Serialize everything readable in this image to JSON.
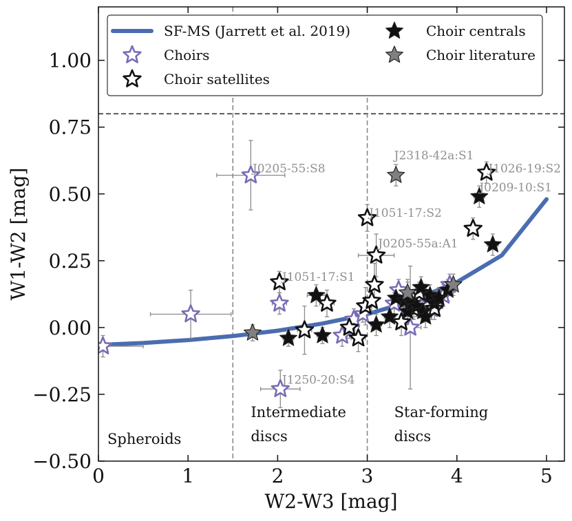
{
  "chart_data": {
    "type": "scatter",
    "title": "",
    "xlabel": "W2-W3 [mag]",
    "ylabel": "W1-W2 [mag]",
    "xlim": [
      0,
      5.2
    ],
    "ylim": [
      -0.5,
      1.2
    ],
    "x_ticks": [
      0,
      1,
      2,
      3,
      4,
      5
    ],
    "y_ticks": [
      -0.5,
      -0.25,
      0.0,
      0.25,
      0.5,
      0.75,
      1.0
    ],
    "x_tick_labels": [
      "0",
      "1",
      "2",
      "3",
      "4",
      "5"
    ],
    "y_tick_labels": [
      "−0.50",
      "−0.25",
      "0.00",
      "0.25",
      "0.50",
      "0.75",
      "1.00"
    ],
    "grid": false,
    "legend_position": "top",
    "legend": [
      {
        "label": "SF-MS (Jarrett et al. 2019)",
        "kind": "line",
        "color": "#4a6db0"
      },
      {
        "label": "Choirs",
        "kind": "open-star",
        "color": "#7a6cb4"
      },
      {
        "label": "Choir satellites",
        "kind": "open-star",
        "color": "#111111"
      },
      {
        "label": "Choir centrals",
        "kind": "filled-star",
        "color": "#111111"
      },
      {
        "label": "Choir literature",
        "kind": "filled-star",
        "color": "#808080"
      }
    ],
    "reference_lines": [
      {
        "orientation": "horizontal",
        "value": 0.8,
        "style": "dashed",
        "color": "#333333"
      },
      {
        "orientation": "vertical",
        "value": 1.5,
        "style": "dashed",
        "color": "#888888"
      },
      {
        "orientation": "vertical",
        "value": 3.0,
        "style": "dashed",
        "color": "#888888"
      }
    ],
    "regions": [
      {
        "label_lines": [
          "Spheroids"
        ],
        "x": 0.1,
        "y": -0.435
      },
      {
        "label_lines": [
          "Intermediate",
          "discs"
        ],
        "x": 1.7,
        "y": -0.335
      },
      {
        "label_lines": [
          "Star-forming",
          "discs"
        ],
        "x": 3.3,
        "y": -0.335
      }
    ],
    "sf_ms_curve": {
      "color": "#4a6db0",
      "x": [
        0,
        0.5,
        1.0,
        1.5,
        2.0,
        2.5,
        3.0,
        3.5,
        4.0,
        4.5,
        5.0
      ],
      "y": [
        -0.065,
        -0.058,
        -0.047,
        -0.032,
        -0.012,
        0.015,
        0.05,
        0.1,
        0.17,
        0.27,
        0.48
      ]
    },
    "series": [
      {
        "name": "Choirs",
        "marker": "open-star",
        "color": "#7a6cb4",
        "points": [
          {
            "x": 0.05,
            "y": -0.07,
            "xerr": 0.45,
            "yerr": 0.04
          },
          {
            "x": 1.03,
            "y": 0.05,
            "xerr": 0.45,
            "yerr": 0.09
          },
          {
            "x": 1.7,
            "y": 0.57,
            "xerr": 0.38,
            "yerr": 0.13
          },
          {
            "x": 2.02,
            "y": 0.09,
            "xerr": 0.08,
            "yerr": 0.04
          },
          {
            "x": 2.03,
            "y": -0.23,
            "xerr": 0.22,
            "yerr": 0.07
          },
          {
            "x": 2.72,
            "y": -0.03,
            "xerr": 0.05,
            "yerr": 0.04
          },
          {
            "x": 2.85,
            "y": 0.03,
            "xerr": 0.05,
            "yerr": 0.04
          },
          {
            "x": 2.95,
            "y": 0.05,
            "xerr": 0.06,
            "yerr": 0.03
          },
          {
            "x": 3.3,
            "y": 0.09,
            "xerr": 0.05,
            "yerr": 0.04
          },
          {
            "x": 3.35,
            "y": 0.14,
            "xerr": 0.05,
            "yerr": 0.04
          },
          {
            "x": 3.45,
            "y": 0.08,
            "xerr": 0.1,
            "yerr": 0.1
          },
          {
            "x": 3.48,
            "y": 0.0,
            "xerr": 0.12,
            "yerr": 0.23
          },
          {
            "x": 3.6,
            "y": 0.12,
            "xerr": 0.05,
            "yerr": 0.04
          },
          {
            "x": 3.72,
            "y": 0.07,
            "xerr": 0.05,
            "yerr": 0.04
          },
          {
            "x": 3.78,
            "y": 0.1,
            "xerr": 0.05,
            "yerr": 0.04
          },
          {
            "x": 3.85,
            "y": 0.12,
            "xerr": 0.05,
            "yerr": 0.04
          },
          {
            "x": 3.92,
            "y": 0.16,
            "xerr": 0.05,
            "yerr": 0.04
          }
        ]
      },
      {
        "name": "Choir satellites",
        "marker": "open-star",
        "color": "#111111",
        "points": [
          {
            "x": 2.02,
            "y": 0.17,
            "xerr": 0.05,
            "yerr": 0.04
          },
          {
            "x": 2.3,
            "y": -0.01,
            "xerr": 0.08,
            "yerr": 0.09
          },
          {
            "x": 2.55,
            "y": 0.09,
            "xerr": 0.08,
            "yerr": 0.05
          },
          {
            "x": 2.8,
            "y": 0.0,
            "xerr": 0.06,
            "yerr": 0.04
          },
          {
            "x": 2.9,
            "y": -0.04,
            "xerr": 0.08,
            "yerr": 0.05
          },
          {
            "x": 2.98,
            "y": 0.08,
            "xerr": 0.06,
            "yerr": 0.07
          },
          {
            "x": 3.0,
            "y": 0.41,
            "xerr": 0.06,
            "yerr": 0.05
          },
          {
            "x": 3.05,
            "y": 0.1,
            "xerr": 0.05,
            "yerr": 0.04
          },
          {
            "x": 3.08,
            "y": 0.16,
            "xerr": 0.04,
            "yerr": 0.08
          },
          {
            "x": 3.1,
            "y": 0.27,
            "xerr": 0.2,
            "yerr": 0.08
          },
          {
            "x": 3.38,
            "y": 0.02,
            "xerr": 0.05,
            "yerr": 0.05
          },
          {
            "x": 3.52,
            "y": 0.07,
            "xerr": 0.05,
            "yerr": 0.04
          },
          {
            "x": 3.58,
            "y": 0.13,
            "xerr": 0.05,
            "yerr": 0.04
          },
          {
            "x": 3.75,
            "y": 0.07,
            "xerr": 0.05,
            "yerr": 0.04
          },
          {
            "x": 4.18,
            "y": 0.37,
            "xerr": 0.05,
            "yerr": 0.04
          },
          {
            "x": 4.33,
            "y": 0.58,
            "xerr": 0.05,
            "yerr": 0.04
          }
        ]
      },
      {
        "name": "Choir centrals",
        "marker": "filled-star",
        "color": "#111111",
        "points": [
          {
            "x": 2.12,
            "y": -0.04,
            "xerr": 0.06,
            "yerr": 0.03
          },
          {
            "x": 2.43,
            "y": 0.12,
            "xerr": 0.1,
            "yerr": 0.04
          },
          {
            "x": 2.5,
            "y": -0.03,
            "xerr": 0.06,
            "yerr": 0.03
          },
          {
            "x": 3.1,
            "y": 0.01,
            "xerr": 0.06,
            "yerr": 0.04
          },
          {
            "x": 3.25,
            "y": 0.04,
            "xerr": 0.06,
            "yerr": 0.04
          },
          {
            "x": 3.32,
            "y": 0.11,
            "xerr": 0.06,
            "yerr": 0.04
          },
          {
            "x": 3.42,
            "y": 0.1,
            "xerr": 0.06,
            "yerr": 0.04
          },
          {
            "x": 3.45,
            "y": 0.06,
            "xerr": 0.06,
            "yerr": 0.04
          },
          {
            "x": 3.5,
            "y": 0.09,
            "xerr": 0.06,
            "yerr": 0.04
          },
          {
            "x": 3.55,
            "y": 0.08,
            "xerr": 0.06,
            "yerr": 0.04
          },
          {
            "x": 3.6,
            "y": 0.15,
            "xerr": 0.06,
            "yerr": 0.04
          },
          {
            "x": 3.62,
            "y": 0.06,
            "xerr": 0.06,
            "yerr": 0.04
          },
          {
            "x": 3.65,
            "y": 0.04,
            "xerr": 0.06,
            "yerr": 0.04
          },
          {
            "x": 3.7,
            "y": 0.12,
            "xerr": 0.06,
            "yerr": 0.04
          },
          {
            "x": 3.75,
            "y": 0.09,
            "xerr": 0.06,
            "yerr": 0.04
          },
          {
            "x": 3.8,
            "y": 0.11,
            "xerr": 0.06,
            "yerr": 0.04
          },
          {
            "x": 3.9,
            "y": 0.14,
            "xerr": 0.06,
            "yerr": 0.04
          },
          {
            "x": 4.25,
            "y": 0.49,
            "xerr": 0.06,
            "yerr": 0.04
          },
          {
            "x": 4.4,
            "y": 0.31,
            "xerr": 0.06,
            "yerr": 0.04
          }
        ]
      },
      {
        "name": "Choir literature",
        "marker": "filled-star",
        "color": "#808080",
        "points": [
          {
            "x": 1.72,
            "y": -0.02,
            "xerr": 0.05,
            "yerr": 0.03
          },
          {
            "x": 3.32,
            "y": 0.57,
            "xerr": 0.05,
            "yerr": 0.04
          },
          {
            "x": 3.45,
            "y": 0.13,
            "xerr": 0.05,
            "yerr": 0.04
          },
          {
            "x": 3.96,
            "y": 0.16,
            "xerr": 0.05,
            "yerr": 0.04
          }
        ]
      }
    ],
    "annotations": [
      {
        "text": "J0205-55:S8",
        "x": 1.72,
        "y": 0.58
      },
      {
        "text": "J2318-42a:S1",
        "x": 3.3,
        "y": 0.63
      },
      {
        "text": "J1026-19:S2",
        "x": 4.35,
        "y": 0.58
      },
      {
        "text": "J0209-10:S1",
        "x": 4.25,
        "y": 0.51
      },
      {
        "text": "J1051-17:S2",
        "x": 3.02,
        "y": 0.415
      },
      {
        "text": "J0205-55a:A1",
        "x": 3.12,
        "y": 0.3
      },
      {
        "text": "J1051-17:S1",
        "x": 2.05,
        "y": 0.175
      },
      {
        "text": "J1250-20:S4",
        "x": 2.05,
        "y": -0.21
      }
    ]
  }
}
